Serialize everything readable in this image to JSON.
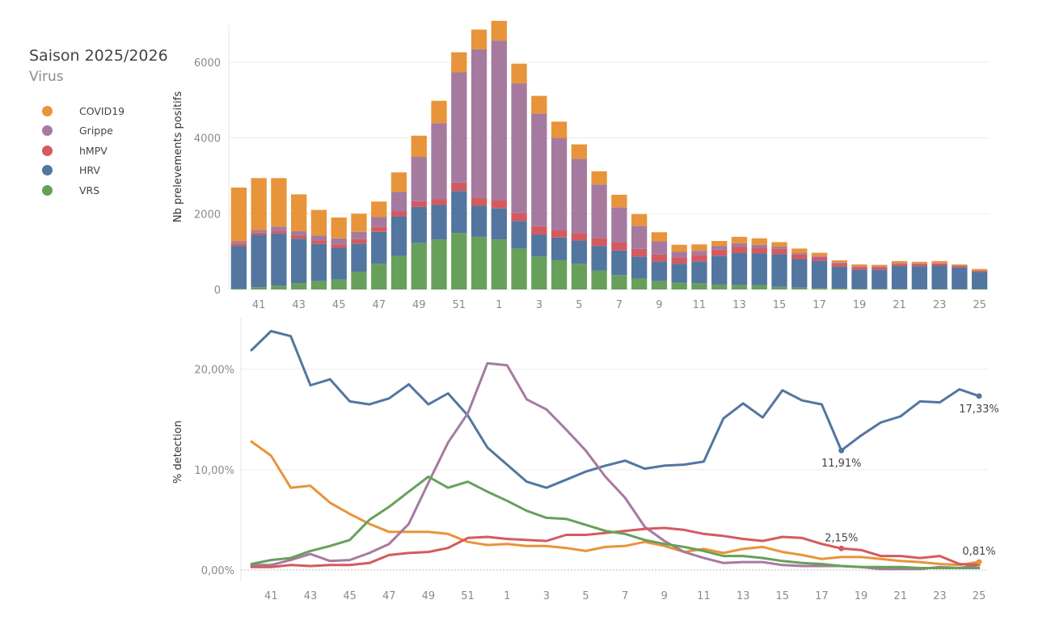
{
  "header": {
    "title": "Saison 2025/2026",
    "subtitle": "Virus"
  },
  "legend": [
    {
      "name": "COVID19",
      "color": "#e8943a"
    },
    {
      "name": "Grippe",
      "color": "#a67a9f"
    },
    {
      "name": "hMPV",
      "color": "#d45a5f"
    },
    {
      "name": "HRV",
      "color": "#5276a0"
    },
    {
      "name": "VRS",
      "color": "#67a05a"
    }
  ],
  "chart_data": [
    {
      "type": "bar",
      "stacked": true,
      "ylabel": "Nb prelevements positifs",
      "ylim": [
        0,
        7000
      ],
      "yticks": [
        0,
        2000,
        4000,
        6000
      ],
      "grid": true,
      "categories": [
        "40",
        "41",
        "42",
        "43",
        "44",
        "45",
        "46",
        "47",
        "48",
        "49",
        "50",
        "51",
        "52",
        "1",
        "2",
        "3",
        "4",
        "5",
        "6",
        "7",
        "8",
        "9",
        "10",
        "11",
        "12",
        "13",
        "14",
        "15",
        "16",
        "17",
        "18",
        "19",
        "20",
        "21",
        "22",
        "23",
        "24",
        "25"
      ],
      "xtick_labels": [
        "41",
        "43",
        "45",
        "47",
        "49",
        "51",
        "1",
        "3",
        "5",
        "7",
        "9",
        "11",
        "13",
        "15",
        "17",
        "19",
        "21",
        "23",
        "25"
      ],
      "series": [
        {
          "name": "VRS",
          "color": "#67a05a",
          "values": [
            20,
            60,
            100,
            170,
            220,
            260,
            470,
            680,
            880,
            1230,
            1320,
            1490,
            1390,
            1320,
            1080,
            870,
            770,
            680,
            500,
            380,
            290,
            220,
            180,
            170,
            130,
            120,
            110,
            70,
            50,
            40,
            30,
            20,
            20,
            20,
            10,
            10,
            10,
            10
          ]
        },
        {
          "name": "HRV",
          "color": "#5276a0",
          "values": [
            1130,
            1380,
            1380,
            1170,
            980,
            840,
            740,
            840,
            1050,
            950,
            910,
            1110,
            820,
            820,
            730,
            580,
            600,
            610,
            650,
            650,
            580,
            520,
            500,
            570,
            760,
            840,
            840,
            860,
            750,
            720,
            570,
            500,
            500,
            600,
            600,
            620,
            570,
            450
          ]
        },
        {
          "name": "hMPV",
          "color": "#d45a5f",
          "values": [
            60,
            60,
            70,
            80,
            90,
            90,
            120,
            130,
            130,
            150,
            150,
            220,
            210,
            220,
            210,
            220,
            200,
            200,
            210,
            220,
            200,
            180,
            170,
            170,
            160,
            160,
            150,
            140,
            120,
            100,
            80,
            70,
            70,
            60,
            60,
            60,
            40,
            30
          ]
        },
        {
          "name": "Grippe",
          "color": "#a67a9f",
          "values": [
            60,
            70,
            110,
            120,
            130,
            160,
            190,
            260,
            520,
            1170,
            2010,
            2910,
            3920,
            4210,
            3420,
            2970,
            2430,
            1960,
            1410,
            920,
            610,
            350,
            150,
            110,
            100,
            100,
            80,
            60,
            40,
            30,
            30,
            20,
            20,
            20,
            20,
            10,
            10,
            10
          ]
        },
        {
          "name": "COVID19",
          "color": "#e8943a",
          "values": [
            1420,
            1370,
            1280,
            970,
            680,
            550,
            480,
            410,
            510,
            560,
            590,
            530,
            520,
            520,
            520,
            470,
            430,
            380,
            350,
            330,
            310,
            240,
            180,
            170,
            130,
            170,
            170,
            120,
            120,
            80,
            60,
            50,
            40,
            50,
            40,
            50,
            30,
            40
          ]
        }
      ]
    },
    {
      "type": "line",
      "ylabel": "% detection",
      "ylim": [
        0,
        24
      ],
      "yticks": [
        "0,00%",
        "10,00%",
        "20,00%"
      ],
      "grid": true,
      "x": [
        "40",
        "41",
        "42",
        "43",
        "44",
        "45",
        "46",
        "47",
        "48",
        "49",
        "50",
        "51",
        "52",
        "1",
        "2",
        "3",
        "4",
        "5",
        "6",
        "7",
        "8",
        "9",
        "10",
        "11",
        "12",
        "13",
        "14",
        "15",
        "16",
        "17",
        "18",
        "19",
        "20",
        "21",
        "22",
        "23",
        "24",
        "25"
      ],
      "xtick_labels": [
        "41",
        "43",
        "45",
        "47",
        "49",
        "51",
        "1",
        "3",
        "5",
        "7",
        "9",
        "11",
        "13",
        "15",
        "17",
        "19",
        "21",
        "23",
        "25"
      ],
      "series": [
        {
          "name": "HRV",
          "color": "#5276a0",
          "values": [
            21.9,
            23.8,
            23.3,
            18.4,
            19.0,
            16.8,
            16.5,
            17.1,
            18.5,
            16.5,
            17.6,
            15.4,
            12.2,
            10.5,
            8.8,
            8.2,
            9.0,
            9.8,
            10.4,
            10.9,
            10.1,
            10.4,
            10.5,
            10.8,
            15.1,
            16.6,
            15.2,
            17.9,
            16.9,
            16.5,
            11.91,
            13.4,
            14.7,
            15.3,
            16.8,
            16.7,
            18.0,
            17.33
          ]
        },
        {
          "name": "COVID19",
          "color": "#e8943a",
          "values": [
            12.8,
            11.4,
            8.2,
            8.4,
            6.7,
            5.6,
            4.6,
            3.8,
            3.8,
            3.8,
            3.6,
            2.8,
            2.5,
            2.6,
            2.4,
            2.4,
            2.2,
            1.9,
            2.3,
            2.4,
            2.8,
            2.4,
            1.8,
            2.1,
            1.7,
            2.1,
            2.3,
            1.8,
            1.5,
            1.1,
            1.3,
            1.3,
            1.1,
            0.9,
            0.8,
            0.6,
            0.5,
            0.81
          ]
        },
        {
          "name": "Grippe",
          "color": "#a67a9f",
          "values": [
            0.5,
            0.5,
            1.0,
            1.6,
            0.9,
            1.0,
            1.7,
            2.6,
            4.6,
            8.7,
            12.7,
            15.6,
            20.6,
            20.4,
            17.0,
            16.0,
            14.0,
            11.9,
            9.3,
            7.2,
            4.3,
            2.9,
            1.8,
            1.2,
            0.7,
            0.8,
            0.8,
            0.5,
            0.4,
            0.4,
            0.4,
            0.3,
            0.1,
            0.1,
            0.1,
            0.3,
            0.2,
            0.5
          ]
        },
        {
          "name": "hMPV",
          "color": "#d45a5f",
          "values": [
            0.3,
            0.3,
            0.5,
            0.4,
            0.5,
            0.5,
            0.7,
            1.5,
            1.7,
            1.8,
            2.2,
            3.2,
            3.3,
            3.1,
            3.0,
            2.9,
            3.5,
            3.5,
            3.7,
            3.9,
            4.1,
            4.2,
            4.0,
            3.6,
            3.4,
            3.1,
            2.9,
            3.3,
            3.2,
            2.6,
            2.15,
            2.0,
            1.4,
            1.4,
            1.2,
            1.4,
            0.6,
            0.5
          ]
        },
        {
          "name": "VRS",
          "color": "#67a05a",
          "values": [
            0.6,
            1.0,
            1.2,
            1.9,
            2.4,
            3.0,
            5.0,
            6.3,
            7.8,
            9.3,
            8.2,
            8.8,
            7.8,
            6.9,
            5.9,
            5.2,
            5.1,
            4.5,
            3.9,
            3.6,
            3.0,
            2.6,
            2.3,
            1.9,
            1.4,
            1.4,
            1.2,
            0.9,
            0.7,
            0.6,
            0.4,
            0.3,
            0.3,
            0.3,
            0.2,
            0.2,
            0.2,
            0.2
          ]
        }
      ],
      "annotations": [
        {
          "series": "HRV",
          "x": "18",
          "text": "11,91%",
          "position": "below"
        },
        {
          "series": "HRV",
          "x": "25",
          "text": "17,33%",
          "position": "below"
        },
        {
          "series": "hMPV",
          "x": "18",
          "text": "2,15%",
          "position": "above"
        },
        {
          "series": "COVID19",
          "x": "25",
          "text": "0,81%",
          "position": "above"
        }
      ]
    }
  ]
}
